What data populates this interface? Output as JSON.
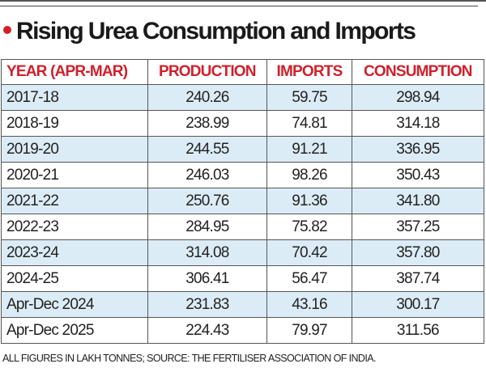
{
  "title": "Rising Urea Consumption and Imports",
  "colors": {
    "accent": "#d11f2a",
    "row_alt": "#dcecf6"
  },
  "chart_data": {
    "type": "table",
    "title": "Rising Urea Consumption and Imports",
    "columns": [
      "YEAR (APR-MAR)",
      "PRODUCTION",
      "IMPORTS",
      "CONSUMPTION"
    ],
    "rows": [
      [
        "2017-18",
        "240.26",
        "59.75",
        "298.94"
      ],
      [
        "2018-19",
        "238.99",
        "74.81",
        "314.18"
      ],
      [
        "2019-20",
        "244.55",
        "91.21",
        "336.95"
      ],
      [
        "2020-21",
        "246.03",
        "98.26",
        "350.43"
      ],
      [
        "2021-22",
        "250.76",
        "91.36",
        "341.80"
      ],
      [
        "2022-23",
        "284.95",
        "75.82",
        "357.25"
      ],
      [
        "2023-24",
        "314.08",
        "70.42",
        "357.80"
      ],
      [
        "2024-25",
        "306.41",
        "56.47",
        "387.74"
      ],
      [
        "Apr-Dec 2024",
        "231.83",
        "43.16",
        "300.17"
      ],
      [
        "Apr-Dec 2025",
        "224.43",
        "79.97",
        "311.56"
      ]
    ],
    "note": "ALL FIGURES IN LAKH TONNES; SOURCE: THE FERTILISER ASSOCIATION OF INDIA."
  }
}
